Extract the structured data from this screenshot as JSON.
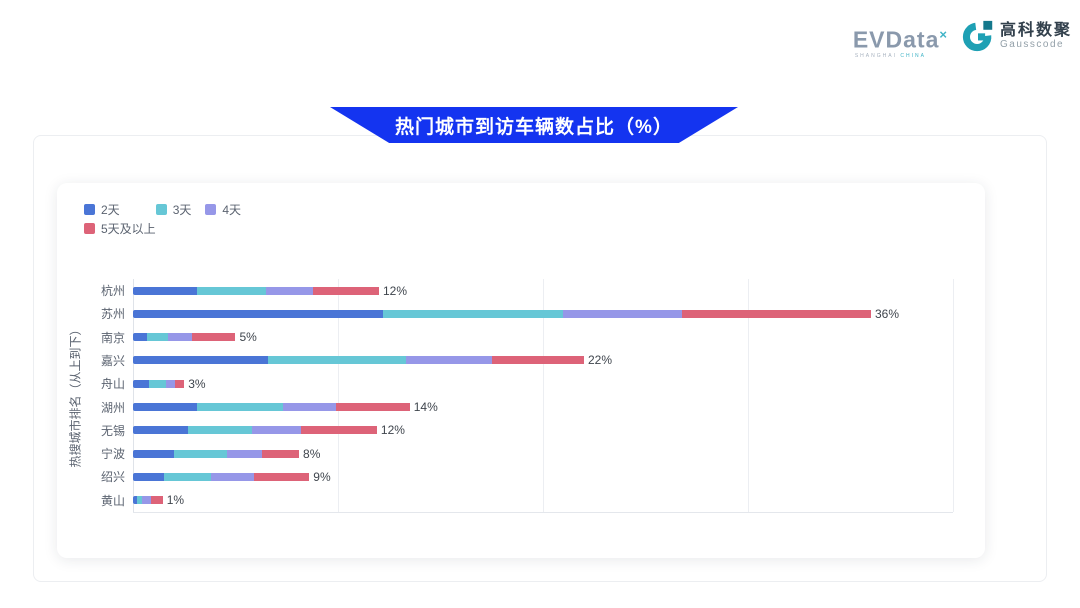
{
  "header": {
    "evdata_logo": {
      "text": "EVData",
      "sup": "×",
      "sub_gray": "SHANGHAI",
      "sub_teal": "CHINA"
    },
    "gausscode_logo": {
      "cn": "高科数聚",
      "en": "Gausscode"
    }
  },
  "banner": {
    "title": "热门城市到访车辆数占比（%）",
    "color": "#1434f0"
  },
  "chart_data": {
    "type": "bar",
    "orientation": "horizontal-stacked",
    "title": "热门城市到访车辆数占比（%）",
    "ylabel": "热搜城市排名（从上到下）",
    "xlabel": "",
    "xlim": [
      0,
      40
    ],
    "gridlines": [
      0,
      10,
      20,
      30,
      40
    ],
    "x_tick_labels_visible": false,
    "legend_position": "top-left",
    "categories": [
      "杭州",
      "苏州",
      "南京",
      "嘉兴",
      "舟山",
      "湖州",
      "无锡",
      "宁波",
      "绍兴",
      "黄山"
    ],
    "series": [
      {
        "name": "2天",
        "color": "#4a75d6",
        "values": [
          3.1,
          12.2,
          0.7,
          6.6,
          0.8,
          3.1,
          2.7,
          2.0,
          1.5,
          0.2
        ]
      },
      {
        "name": "3天",
        "color": "#66c7d6",
        "values": [
          3.4,
          8.8,
          1.0,
          6.7,
          0.8,
          4.2,
          3.1,
          2.6,
          2.3,
          0.25
        ]
      },
      {
        "name": "4天",
        "color": "#9697e8",
        "values": [
          2.3,
          5.8,
          1.2,
          4.2,
          0.45,
          2.6,
          2.4,
          1.7,
          2.1,
          0.45
        ]
      },
      {
        "name": "5天及以上",
        "color": "#dd6378",
        "values": [
          3.2,
          9.2,
          2.1,
          4.5,
          0.45,
          3.6,
          3.7,
          1.8,
          2.7,
          0.55
        ]
      }
    ],
    "total_labels": [
      "12%",
      "36%",
      "5%",
      "22%",
      "3%",
      "14%",
      "12%",
      "8%",
      "9%",
      "1%"
    ]
  }
}
